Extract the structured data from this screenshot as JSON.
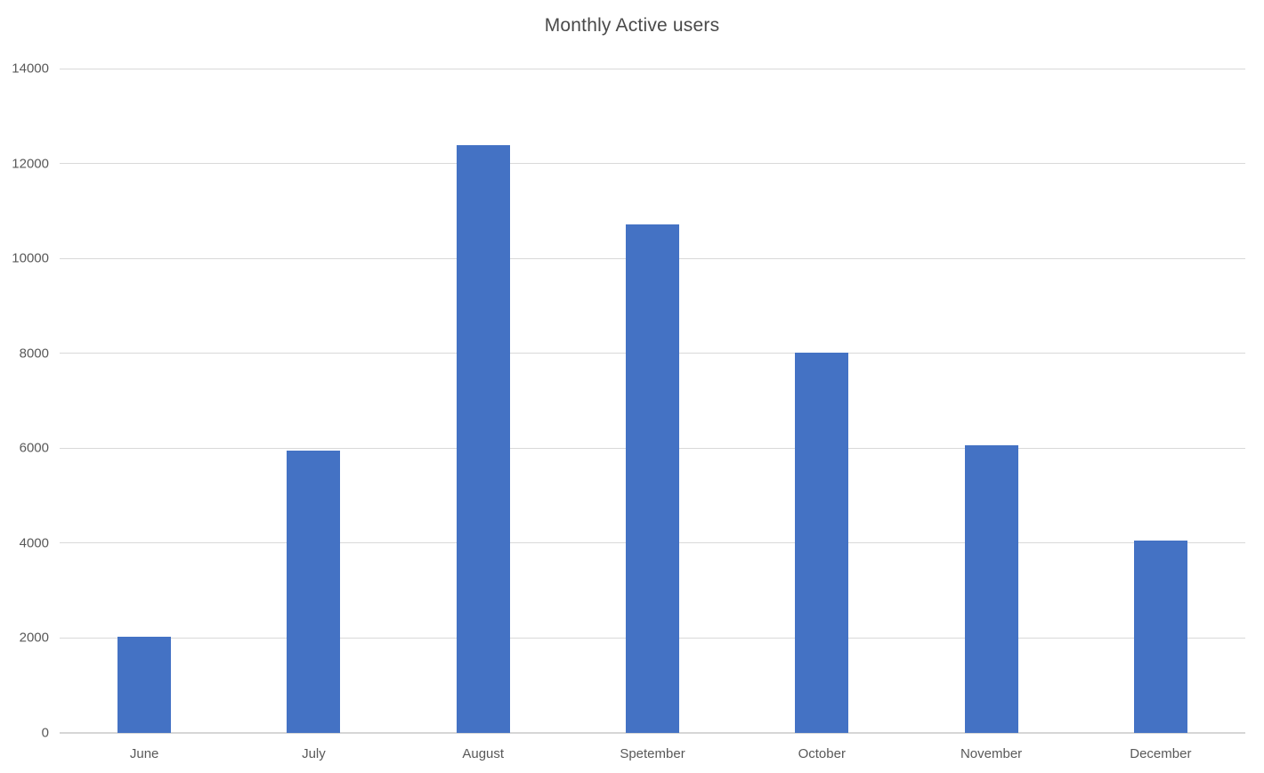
{
  "chart_data": {
    "type": "bar",
    "title": "Monthly Active users",
    "categories": [
      "June",
      "July",
      "August",
      "Spetember",
      "October",
      "November",
      "December"
    ],
    "values": [
      2020,
      5950,
      12380,
      10720,
      8020,
      6060,
      4060
    ],
    "xlabel": "",
    "ylabel": "",
    "ylim": [
      0,
      14000
    ],
    "ytick_interval": 2000,
    "ytick_labels": [
      "0",
      "2000",
      "4000",
      "6000",
      "8000",
      "10000",
      "12000",
      "14000"
    ],
    "grid": true,
    "legend": "none",
    "colors": {
      "bar": "#4472C4",
      "gridline": "#D9D9D9",
      "axis_line": "#D6D6D6",
      "tick_text": "#595959",
      "title_text": "#4A4A4A"
    }
  }
}
